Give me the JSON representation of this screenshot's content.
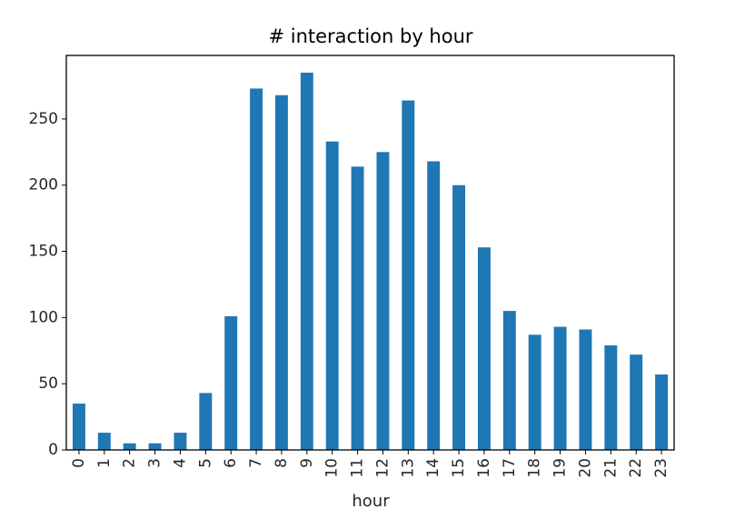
{
  "chart_data": {
    "type": "bar",
    "title": "# interaction by hour",
    "xlabel": "hour",
    "ylabel": "",
    "categories": [
      "0",
      "1",
      "2",
      "3",
      "4",
      "5",
      "6",
      "7",
      "8",
      "9",
      "10",
      "11",
      "12",
      "13",
      "14",
      "15",
      "16",
      "17",
      "18",
      "19",
      "20",
      "21",
      "22",
      "23"
    ],
    "values": [
      35,
      13,
      5,
      5,
      13,
      43,
      101,
      273,
      268,
      285,
      233,
      214,
      225,
      264,
      218,
      200,
      153,
      105,
      87,
      93,
      91,
      79,
      72,
      57
    ],
    "ylim": [
      0,
      298
    ],
    "yticks": [
      0,
      50,
      100,
      150,
      200,
      250
    ],
    "grid": false,
    "legend": "none",
    "bar_color": "#1f77b4"
  }
}
